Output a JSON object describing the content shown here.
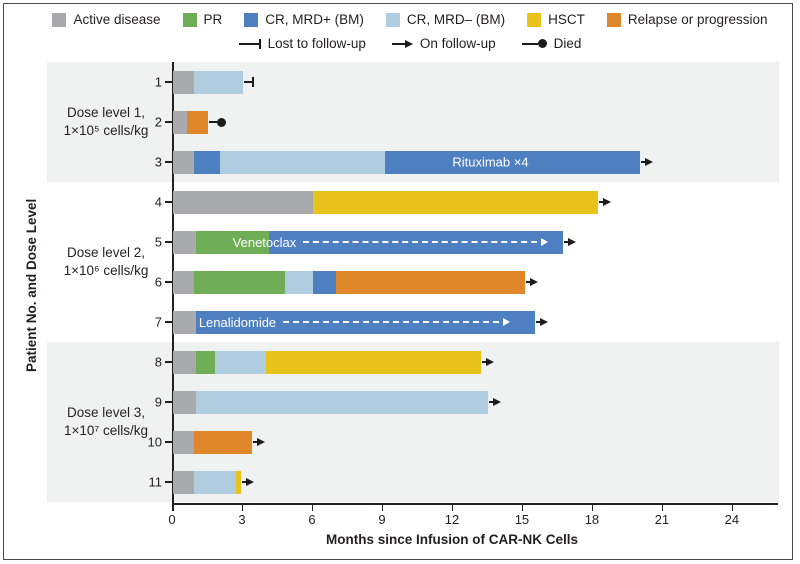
{
  "colors": {
    "active": "#a8aaad",
    "pr": "#6fae56",
    "crpos": "#4d7fc1",
    "crneg": "#b0cde0",
    "hsct": "#e8c31c",
    "relapse": "#e0872c",
    "band_shaded": "#f0f1f1",
    "ink": "#231f20"
  },
  "chart_data": {
    "type": "bar",
    "subtype": "horizontal-stacked-swimmer",
    "xlabel": "Months since Infusion of CAR-NK Cells",
    "ylabel": "Patient No. and Dose Level",
    "x_ticks": [
      0,
      3,
      6,
      9,
      12,
      15,
      18,
      21,
      24
    ],
    "xlim": [
      0,
      25.8
    ],
    "grid": false,
    "legend_position": "top",
    "legend": [
      {
        "key": "active",
        "label": "Active disease"
      },
      {
        "key": "pr",
        "label": "PR"
      },
      {
        "key": "crpos",
        "label": "CR, MRD+ (BM)"
      },
      {
        "key": "crneg",
        "label": "CR, MRD– (BM)"
      },
      {
        "key": "hsct",
        "label": "HSCT"
      },
      {
        "key": "relapse",
        "label": "Relapse or progression"
      }
    ],
    "marker_legend": [
      {
        "marker": "lost",
        "label": "Lost to follow-up"
      },
      {
        "marker": "arrow",
        "label": "On follow-up"
      },
      {
        "marker": "died",
        "label": "Died"
      }
    ],
    "groups": [
      {
        "label_lines": [
          "Dose level 1,",
          "1×10⁵ cells/kg"
        ],
        "patients": [
          1,
          2,
          3
        ],
        "shaded": true
      },
      {
        "label_lines": [
          "Dose level 2,",
          "1×10⁶ cells/kg"
        ],
        "patients": [
          4,
          5,
          6,
          7
        ],
        "shaded": false
      },
      {
        "label_lines": [
          "Dose level 3,",
          "1×10⁷ cells/kg"
        ],
        "patients": [
          8,
          9,
          10,
          11
        ],
        "shaded": true
      }
    ],
    "patients": [
      {
        "id": "1",
        "segments": [
          {
            "state": "active",
            "from": 0,
            "to": 0.9
          },
          {
            "state": "crneg",
            "from": 0.9,
            "to": 3.0
          }
        ],
        "end_marker": "lost"
      },
      {
        "id": "2",
        "segments": [
          {
            "state": "active",
            "from": 0,
            "to": 0.6
          },
          {
            "state": "relapse",
            "from": 0.6,
            "to": 1.5
          }
        ],
        "end_marker": "died"
      },
      {
        "id": "3",
        "segments": [
          {
            "state": "active",
            "from": 0,
            "to": 0.9
          },
          {
            "state": "crpos",
            "from": 0.9,
            "to": 2.0
          },
          {
            "state": "crneg",
            "from": 2.0,
            "to": 9.1
          },
          {
            "state": "crpos",
            "from": 9.1,
            "to": 20.0
          }
        ],
        "end_marker": "arrow",
        "annotation": {
          "type": "label",
          "text": "Rituximab ×4",
          "from": 9.1,
          "to": 18.2
        }
      },
      {
        "id": "4",
        "segments": [
          {
            "state": "active",
            "from": 0,
            "to": 6.0
          },
          {
            "state": "hsct",
            "from": 6.0,
            "to": 18.2
          }
        ],
        "end_marker": "arrow"
      },
      {
        "id": "5",
        "segments": [
          {
            "state": "active",
            "from": 0,
            "to": 1.0
          },
          {
            "state": "pr",
            "from": 1.0,
            "to": 4.1
          },
          {
            "state": "crpos",
            "from": 4.1,
            "to": 16.7
          }
        ],
        "end_marker": "arrow",
        "annotation": {
          "type": "dashed-arrow",
          "text": "Venetoclax",
          "from": 2.6,
          "to": 16.1
        }
      },
      {
        "id": "6",
        "segments": [
          {
            "state": "active",
            "from": 0,
            "to": 0.9
          },
          {
            "state": "pr",
            "from": 0.9,
            "to": 4.8
          },
          {
            "state": "crneg",
            "from": 4.8,
            "to": 6.0
          },
          {
            "state": "crpos",
            "from": 6.0,
            "to": 7.0
          },
          {
            "state": "relapse",
            "from": 7.0,
            "to": 15.1
          }
        ],
        "end_marker": "arrow"
      },
      {
        "id": "7",
        "segments": [
          {
            "state": "active",
            "from": 0,
            "to": 1.0
          },
          {
            "state": "crpos",
            "from": 1.0,
            "to": 15.5
          }
        ],
        "end_marker": "arrow",
        "annotation": {
          "type": "dashed-arrow",
          "text": "Lenalidomide",
          "from": 1.15,
          "to": 14.5
        }
      },
      {
        "id": "8",
        "segments": [
          {
            "state": "active",
            "from": 0,
            "to": 1.0
          },
          {
            "state": "pr",
            "from": 1.0,
            "to": 1.8
          },
          {
            "state": "crneg",
            "from": 1.8,
            "to": 4.0
          },
          {
            "state": "hsct",
            "from": 4.0,
            "to": 13.2
          }
        ],
        "end_marker": "arrow"
      },
      {
        "id": "9",
        "segments": [
          {
            "state": "active",
            "from": 0,
            "to": 1.0
          },
          {
            "state": "crneg",
            "from": 1.0,
            "to": 13.5
          }
        ],
        "end_marker": "arrow"
      },
      {
        "id": "10",
        "segments": [
          {
            "state": "active",
            "from": 0,
            "to": 0.9
          },
          {
            "state": "relapse",
            "from": 0.9,
            "to": 3.4
          }
        ],
        "end_marker": "arrow"
      },
      {
        "id": "11",
        "segments": [
          {
            "state": "active",
            "from": 0,
            "to": 0.9
          },
          {
            "state": "crneg",
            "from": 0.9,
            "to": 2.7
          },
          {
            "state": "hsct",
            "from": 2.7,
            "to": 2.9
          }
        ],
        "end_marker": "arrow"
      }
    ]
  }
}
